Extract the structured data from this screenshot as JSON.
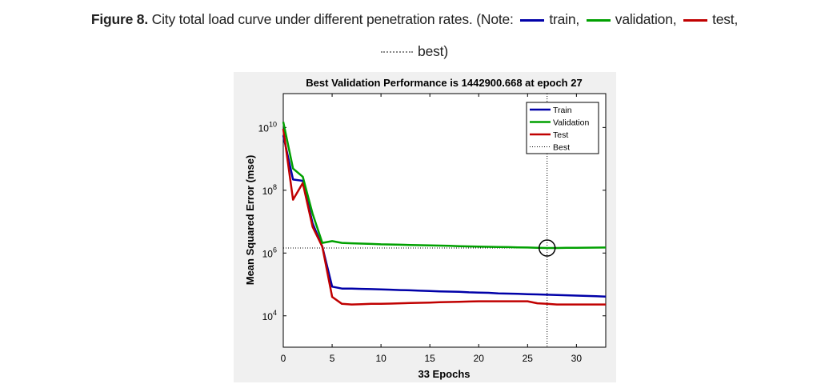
{
  "caption": {
    "label": "Figure 8.",
    "text": "City total load curve under different penetration rates. (Note:",
    "train": "train,",
    "validation": "validation,",
    "test": "test,",
    "best": "best)"
  },
  "chart_data": {
    "type": "line",
    "title": "Best Validation Performance is 1442900.668 at epoch 27",
    "xlabel": "33 Epochs",
    "ylabel": "Mean Squared Error  (mse)",
    "xlim": [
      0,
      33
    ],
    "ylim": [
      1000,
      120000000000
    ],
    "yscale": "log",
    "xticks": [
      "0",
      "5",
      "10",
      "15",
      "20",
      "25",
      "30"
    ],
    "yticks": [
      {
        "base": "10",
        "exp": "4"
      },
      {
        "base": "10",
        "exp": "6"
      },
      {
        "base": "10",
        "exp": "8"
      },
      {
        "base": "10",
        "exp": "10"
      }
    ],
    "grid": false,
    "legend_position": "top-right",
    "x": [
      0,
      1,
      2,
      3,
      4,
      5,
      6,
      7,
      8,
      9,
      10,
      11,
      12,
      13,
      14,
      15,
      16,
      17,
      18,
      19,
      20,
      21,
      22,
      23,
      24,
      25,
      26,
      27,
      28,
      29,
      30,
      31,
      32,
      33
    ],
    "series": [
      {
        "name": "Train",
        "color": "#0000a8",
        "values": [
          5600000000.0,
          220000000.0,
          200000000.0,
          8900000.0,
          1600000.0,
          85000,
          74000,
          74000,
          72000,
          71000,
          69000,
          68000,
          66000,
          65000,
          63000,
          62000,
          60000,
          59000,
          58000,
          56000,
          55000,
          54000,
          52000,
          51000,
          50000,
          49000,
          48000,
          47000,
          46000,
          45000,
          44000,
          43000,
          42000,
          41000
        ]
      },
      {
        "name": "Validation",
        "color": "#00a000",
        "values": [
          15000000000.0,
          490000000.0,
          270000000.0,
          18000000.0,
          2100000.0,
          2400000.0,
          2100000.0,
          2050000.0,
          2000000.0,
          1950000.0,
          1900000.0,
          1870000.0,
          1840000.0,
          1810000.0,
          1780000.0,
          1750000.0,
          1720000.0,
          1690000.0,
          1660000.0,
          1630000.0,
          1600000.0,
          1580000.0,
          1560000.0,
          1540000.0,
          1520000.0,
          1500000.0,
          1470000.0,
          1442900.668,
          1450000.0,
          1460000.0,
          1470000.0,
          1480000.0,
          1490000.0,
          1500000.0
        ]
      },
      {
        "name": "Test",
        "color": "#c00000",
        "values": [
          9100000000.0,
          50000000.0,
          170000000.0,
          6900000.0,
          1600000.0,
          40000,
          24000,
          23000,
          23500,
          24000,
          24000,
          24500,
          25000,
          25500,
          26000,
          26500,
          27000,
          27500,
          28000,
          28500,
          29000,
          29000,
          29000,
          29000,
          29000,
          29000,
          25000,
          24000,
          23000,
          23000,
          23000,
          23000,
          23000,
          23000
        ]
      }
    ],
    "best": {
      "label": "Best",
      "epoch": 27,
      "value": 1442900.668
    }
  }
}
